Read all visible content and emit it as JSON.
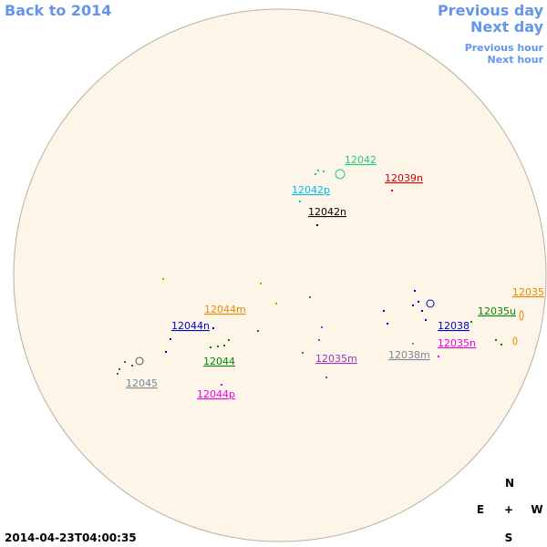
{
  "navigation": {
    "back": "Back to 2014",
    "previous_day": "Previous day",
    "next_day": "Next day",
    "previous_hour": "Previous hour",
    "next_hour": "Next hour"
  },
  "regions": [
    "12042",
    "12039n",
    "12042p",
    "12042n",
    "12035",
    "12044m",
    "12035u",
    "12044n",
    "12038",
    "12035n",
    "12038m",
    "12035m",
    "12044",
    "12045",
    "12044p"
  ],
  "compass": {
    "north": "N",
    "east": "E",
    "center": "+",
    "west": "W",
    "south": "S"
  },
  "timestamp": "2014-04-23T04:00:35"
}
